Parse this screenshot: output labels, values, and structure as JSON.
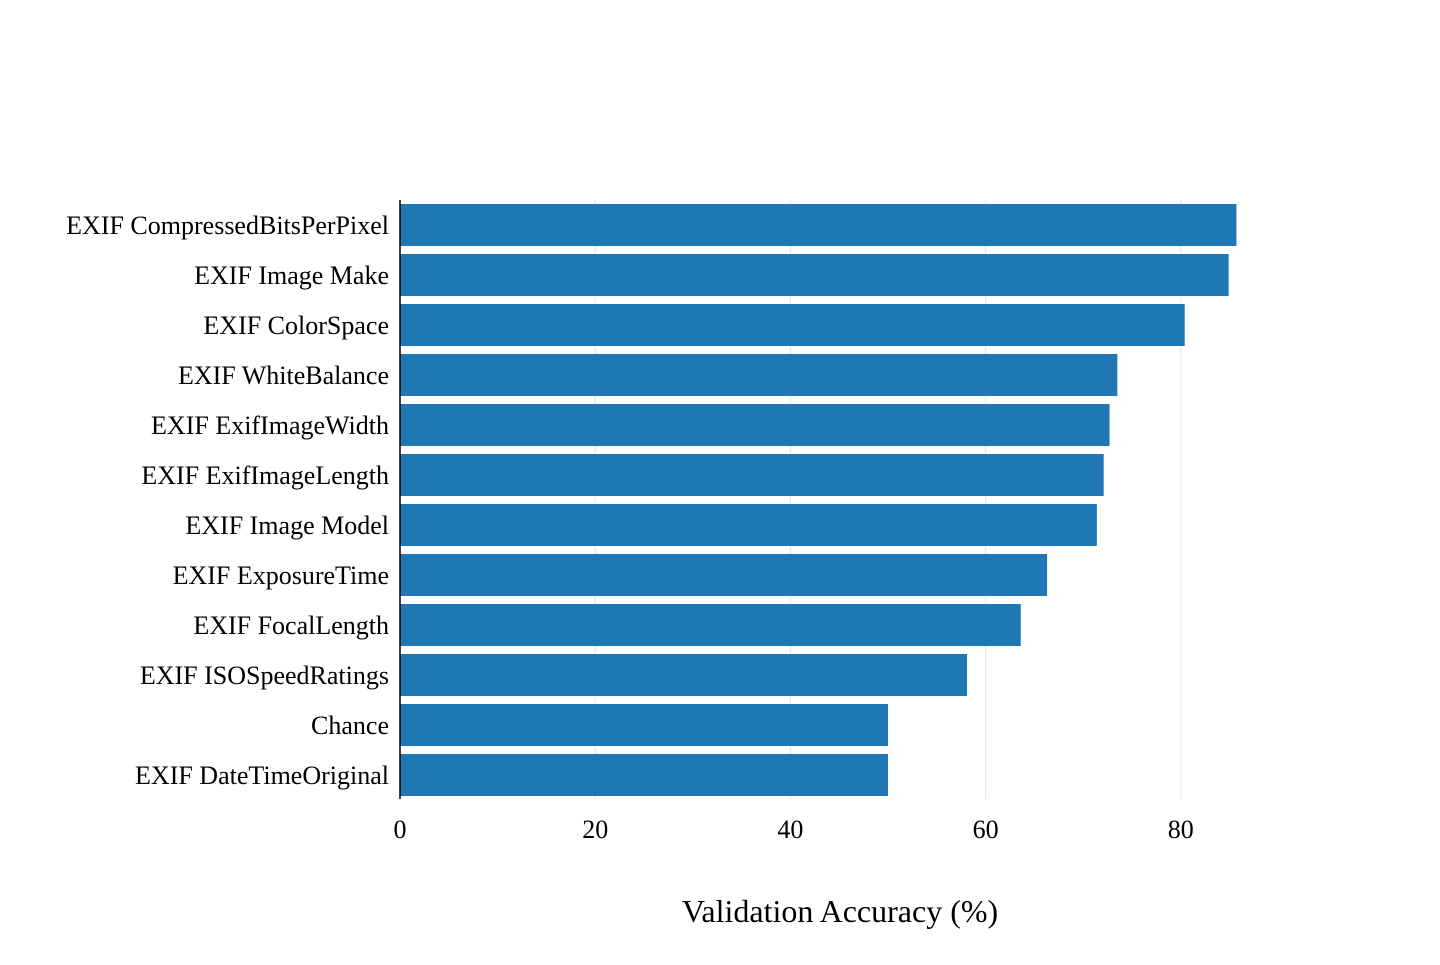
{
  "chart_data": {
    "type": "bar",
    "orientation": "horizontal",
    "title": "",
    "xlabel": "Validation Accuracy (%)",
    "ylabel": "",
    "xlim": [
      0,
      94
    ],
    "xticks": [
      0,
      20,
      40,
      60,
      80
    ],
    "grid": "vertical",
    "legend": "none",
    "categories": [
      "EXIF CompressedBitsPerPixel",
      "EXIF Image Make",
      "EXIF ColorSpace",
      "EXIF WhiteBalance",
      "EXIF ExifImageWidth",
      "EXIF ExifImageLength",
      "EXIF Image Model",
      "EXIF ExposureTime",
      "EXIF FocalLength",
      "EXIF ISOSpeedRatings",
      "Chance",
      "EXIF DateTimeOriginal"
    ],
    "values": [
      85.7,
      84.9,
      80.4,
      73.5,
      72.7,
      72.1,
      71.4,
      66.3,
      63.6,
      58.1,
      50.0,
      50.0
    ],
    "colors": {
      "bar": "#1f77b4",
      "grid": "#e5e5e5",
      "axis": "#000000"
    }
  }
}
